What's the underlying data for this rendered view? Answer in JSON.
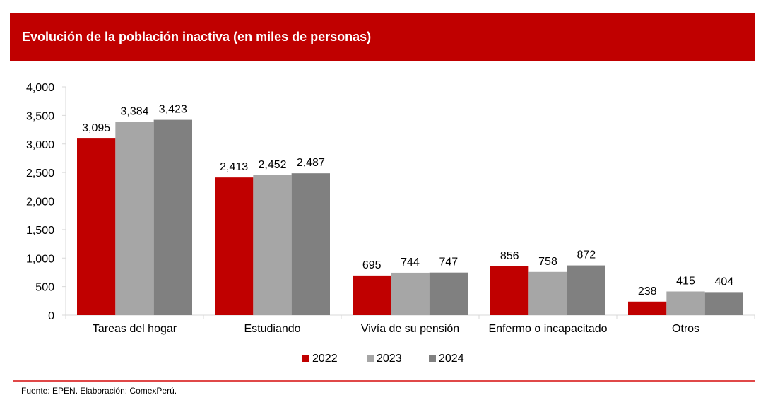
{
  "header": {
    "title": "Evolución de la población inactiva (en miles de personas)"
  },
  "colors": {
    "header_bg": "#C00000",
    "footer_line": "#E04848"
  },
  "chart_data": {
    "type": "bar",
    "title": "Evolución de la población inactiva (en miles de personas)",
    "xlabel": "",
    "ylabel": "",
    "categories": [
      "Tareas del hogar",
      "Estudiando",
      "Vivía de su pensión",
      "Enfermo o incapacitado",
      "Otros"
    ],
    "series": [
      {
        "name": "2022",
        "color": "#C00000",
        "values": [
          3095,
          2413,
          695,
          856,
          238
        ],
        "labels": [
          "3,095",
          "2,413",
          "695",
          "856",
          "238"
        ]
      },
      {
        "name": "2023",
        "color": "#A6A6A6",
        "values": [
          3384,
          2452,
          744,
          758,
          415
        ],
        "labels": [
          "3,384",
          "2,452",
          "744",
          "758",
          "415"
        ]
      },
      {
        "name": "2024",
        "color": "#808080",
        "values": [
          3423,
          2487,
          747,
          872,
          404
        ],
        "labels": [
          "3,423",
          "2,487",
          "747",
          "872",
          "404"
        ]
      }
    ],
    "ylim": [
      0,
      4000
    ],
    "yticks": [
      0,
      500,
      1000,
      1500,
      2000,
      2500,
      3000,
      3500,
      4000
    ],
    "ytick_labels": [
      "0",
      "500",
      "1,000",
      "1,500",
      "2,000",
      "2,500",
      "3,000",
      "3,500",
      "4,000"
    ],
    "grid": false,
    "legend_position": "bottom"
  },
  "legend": {
    "items": [
      "2022",
      "2023",
      "2024"
    ]
  },
  "footer": {
    "source": "Fuente: EPEN. Elaboración: ComexPerú."
  }
}
